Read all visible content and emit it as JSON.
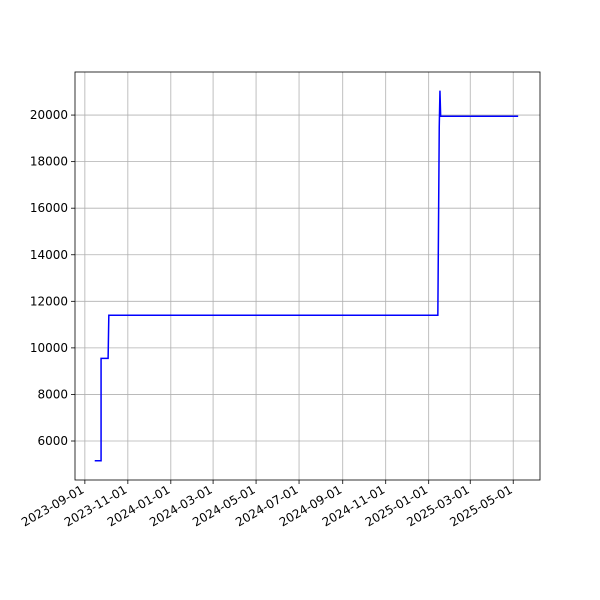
{
  "chart_data": {
    "type": "line",
    "x": [
      "2023-09-15",
      "2023-09-24",
      "2023-09-24",
      "2023-10-04",
      "2023-10-05",
      "2025-01-14",
      "2025-01-16",
      "2025-01-17",
      "2025-01-18",
      "2025-05-08"
    ],
    "series": [
      {
        "color": "#0000ff",
        "values": [
          5150,
          5150,
          9550,
          9550,
          11400,
          11400,
          19500,
          21050,
          19950,
          19950
        ]
      }
    ],
    "xlim": [
      "2023-08-18",
      "2025-06-08"
    ],
    "xticks": [
      "2023-09-01",
      "2023-11-01",
      "2024-01-01",
      "2024-03-01",
      "2024-05-01",
      "2024-07-01",
      "2024-09-01",
      "2024-11-01",
      "2025-01-01",
      "2025-03-01",
      "2025-05-01"
    ],
    "ylim": [
      4325,
      21850
    ],
    "yticks": [
      6000,
      8000,
      10000,
      12000,
      14000,
      16000,
      18000,
      20000
    ],
    "grid": true
  }
}
